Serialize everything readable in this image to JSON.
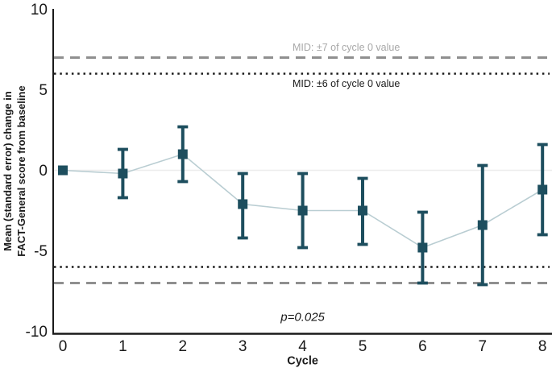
{
  "figure": {
    "ylabel_line1": "Mean (standard error) change in",
    "ylabel_line2": "FACT-General score from baseline"
  },
  "chart_data": {
    "type": "line",
    "title": "",
    "xlabel": "Cycle",
    "ylabel": "Mean (standard error) change in FACT-General score from baseline",
    "x": [
      0,
      1,
      2,
      3,
      4,
      5,
      6,
      7,
      8
    ],
    "series": [
      {
        "name": "mean-change-fact-general-score",
        "values": [
          0,
          -0.2,
          1.0,
          -2.1,
          -2.5,
          -2.5,
          -4.8,
          -3.4,
          -1.2
        ],
        "upper_se": [
          0,
          1.3,
          2.7,
          -0.2,
          -0.2,
          -0.5,
          -2.6,
          0.3,
          1.6
        ],
        "lower_se": [
          0,
          -1.7,
          -0.7,
          -4.2,
          -4.8,
          -4.6,
          -7.0,
          -7.1,
          -4.0
        ]
      }
    ],
    "reference_lines": [
      {
        "value": 7,
        "style": "dashed",
        "color": "#8f8f8f",
        "label": "MID: ±7 of cycle 0 value",
        "label_color": "#a8a8a8",
        "label_position": "above"
      },
      {
        "value": 6,
        "style": "dotted",
        "color": "#1a1a1a",
        "label": "MID: ±6 of cycle 0 value",
        "label_color": "#1a1a1a",
        "label_position": "below"
      },
      {
        "value": -6,
        "style": "dotted",
        "color": "#1a1a1a",
        "label": "",
        "label_position": ""
      },
      {
        "value": -7,
        "style": "dashed",
        "color": "#8f8f8f",
        "label": "",
        "label_position": ""
      }
    ],
    "annotation": {
      "text": "p=0.025",
      "x": 4.0,
      "y": -9.35
    },
    "xlim": [
      0,
      8
    ],
    "ylim": [
      -10,
      10
    ],
    "yticks": [
      10,
      5,
      0,
      -5,
      -10
    ],
    "xticks": [
      0,
      1,
      2,
      3,
      4,
      5,
      6,
      7,
      8
    ],
    "grid": "zero line only",
    "legend": "none",
    "colors": {
      "marker": "#1d4e5e",
      "error_bar": "#1d4e5e",
      "connector": "#b9cdd2",
      "zero_line": "#ececec",
      "axis": "#1a1a1a"
    }
  }
}
